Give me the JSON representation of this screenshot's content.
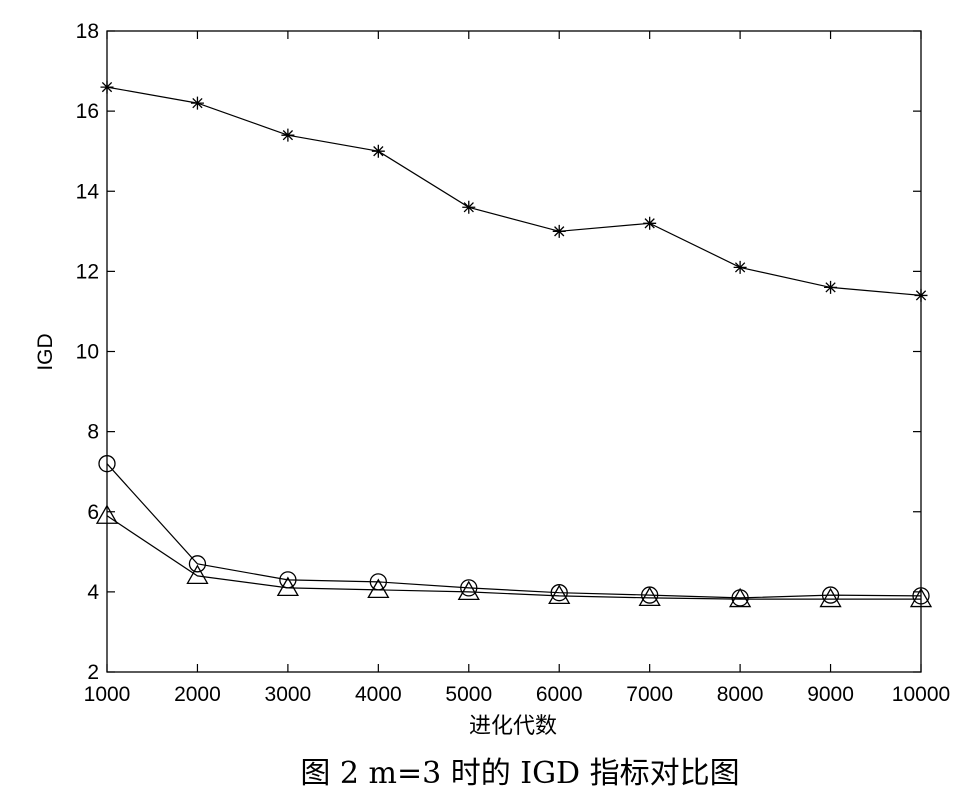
{
  "chart_data": {
    "type": "line",
    "title": "",
    "xlabel": "进化代数",
    "ylabel": "IGD",
    "x": [
      1000,
      2000,
      3000,
      4000,
      5000,
      6000,
      7000,
      8000,
      9000,
      10000
    ],
    "xlim": [
      1000,
      10000
    ],
    "ylim": [
      2,
      18
    ],
    "xticks": [
      1000,
      2000,
      3000,
      4000,
      5000,
      6000,
      7000,
      8000,
      9000,
      10000
    ],
    "yticks": [
      2,
      4,
      6,
      8,
      10,
      12,
      14,
      16,
      18
    ],
    "grid": false,
    "legend": "none",
    "series": [
      {
        "marker": "star",
        "color": "#000000",
        "values": [
          16.6,
          16.2,
          15.4,
          15.0,
          13.6,
          13.0,
          13.2,
          12.1,
          11.6,
          11.4
        ]
      },
      {
        "marker": "circle",
        "color": "#000000",
        "values": [
          7.2,
          4.7,
          4.3,
          4.25,
          4.1,
          3.98,
          3.92,
          3.85,
          3.92,
          3.9
        ]
      },
      {
        "marker": "triangle",
        "color": "#000000",
        "values": [
          5.9,
          4.4,
          4.1,
          4.05,
          4.0,
          3.9,
          3.85,
          3.82,
          3.82,
          3.82
        ]
      }
    ]
  },
  "caption": "图 2  m=3 时的 IGD 指标对比图"
}
